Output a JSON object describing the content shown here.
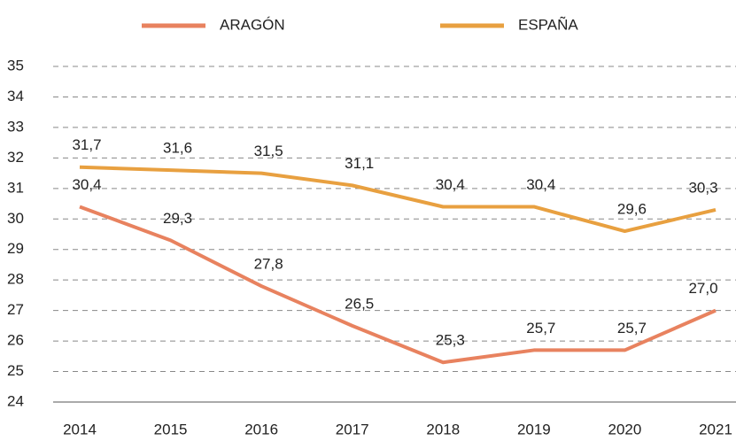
{
  "chart_data": {
    "type": "line",
    "categories": [
      "2014",
      "2015",
      "2016",
      "2017",
      "2018",
      "2019",
      "2020",
      "2021"
    ],
    "series": [
      {
        "name": "ARAGÓN",
        "color": "#e8825f",
        "values": [
          30.4,
          29.3,
          27.8,
          26.5,
          25.3,
          25.7,
          25.7,
          27.0
        ],
        "value_labels": [
          "30,4",
          "29,3",
          "27,8",
          "26,5",
          "25,3",
          "25,7",
          "25,7",
          "27,0"
        ]
      },
      {
        "name": "ESPAÑA",
        "color": "#e8a040",
        "values": [
          31.7,
          31.6,
          31.5,
          31.1,
          30.4,
          30.4,
          29.6,
          30.3
        ],
        "value_labels": [
          "31,7",
          "31,6",
          "31,5",
          "31,1",
          "30,4",
          "30,4",
          "29,6",
          "30,3"
        ]
      }
    ],
    "ylim": [
      24,
      35
    ],
    "yticks": [
      24,
      25,
      26,
      27,
      28,
      29,
      30,
      31,
      32,
      33,
      34,
      35
    ],
    "grid": true,
    "legend": "top"
  }
}
